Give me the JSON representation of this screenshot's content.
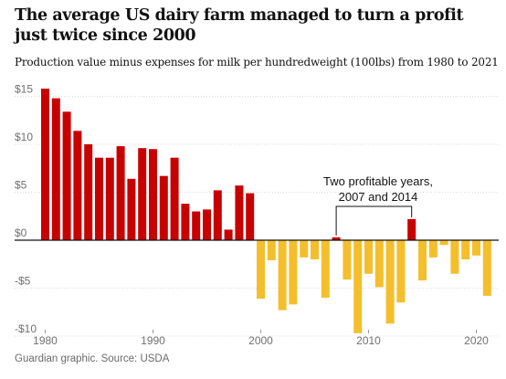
{
  "header": {
    "title": "The average US dairy farm managed to turn a profit just twice since 2000",
    "subtitle": "Production value minus expenses for milk per hundredweight (100lbs) from 1980 to 2021"
  },
  "footer": {
    "source": "Guardian graphic. Source: USDA"
  },
  "chart_data": {
    "type": "bar",
    "x": [
      1980,
      1981,
      1982,
      1983,
      1984,
      1985,
      1986,
      1987,
      1988,
      1989,
      1990,
      1991,
      1992,
      1993,
      1994,
      1995,
      1996,
      1997,
      1998,
      1999,
      2000,
      2001,
      2002,
      2003,
      2004,
      2005,
      2006,
      2007,
      2008,
      2009,
      2010,
      2011,
      2012,
      2013,
      2014,
      2015,
      2016,
      2017,
      2018,
      2019,
      2020,
      2021
    ],
    "values": [
      15.8,
      14.8,
      13.4,
      11.4,
      10.0,
      8.6,
      8.6,
      9.8,
      6.4,
      9.6,
      9.5,
      6.7,
      8.6,
      3.8,
      3.0,
      3.2,
      5.2,
      1.1,
      5.7,
      4.9,
      -6.1,
      -2.1,
      -7.3,
      -6.7,
      -1.8,
      -2.0,
      -6.0,
      0.3,
      -4.1,
      -9.7,
      -3.5,
      -4.9,
      -8.7,
      -6.5,
      2.2,
      -4.2,
      -1.8,
      -0.5,
      -3.5,
      -2.0,
      -1.6,
      -5.8
    ],
    "colors": {
      "positive": "#c70000",
      "negative": "#f5be2c",
      "axis": "#121212",
      "grid": "#dcdcdc"
    },
    "ylim": [
      -10.5,
      16
    ],
    "yticks": [
      15,
      10,
      5,
      0,
      -5,
      -10
    ],
    "ytick_labels": [
      "$15",
      "$10",
      "$5",
      "$0",
      "-$5",
      "-$10"
    ],
    "xticks": [
      1980,
      1990,
      2000,
      2010,
      2020
    ],
    "xtick_labels": [
      "1980",
      "1990",
      "2000",
      "2010",
      "2020"
    ],
    "grid": true,
    "annotation": {
      "line1": "Two profitable years,",
      "line2": "2007 and 2014",
      "years": [
        2007,
        2014
      ]
    }
  }
}
